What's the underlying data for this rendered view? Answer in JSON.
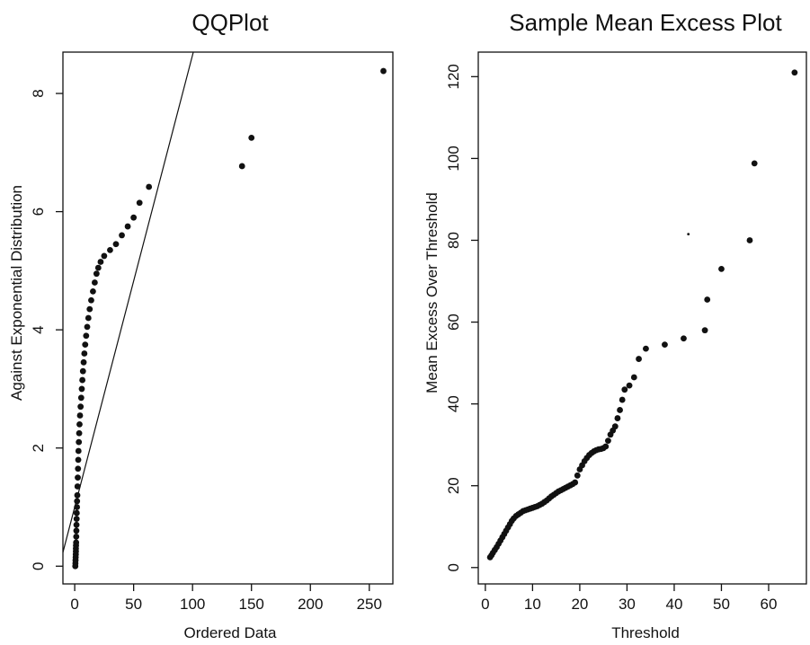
{
  "chart_data": [
    {
      "type": "scatter",
      "title": "QQPlot",
      "xlabel": "Ordered Data",
      "ylabel": "Against Exponential Distribution",
      "xlim": [
        -10,
        270
      ],
      "ylim": [
        -0.3,
        8.7
      ],
      "xticks": [
        0,
        50,
        100,
        150,
        200,
        250
      ],
      "yticks": [
        0,
        2,
        4,
        6,
        8
      ],
      "grid": false,
      "reference_line": {
        "intercept": 1.0,
        "slope": 0.0765
      },
      "points": [
        [
          0.5,
          0.0
        ],
        [
          0.6,
          0.05
        ],
        [
          0.7,
          0.1
        ],
        [
          0.8,
          0.15
        ],
        [
          0.9,
          0.2
        ],
        [
          1.0,
          0.25
        ],
        [
          1.0,
          0.3
        ],
        [
          1.1,
          0.35
        ],
        [
          1.2,
          0.4
        ],
        [
          1.3,
          0.5
        ],
        [
          1.4,
          0.6
        ],
        [
          1.5,
          0.7
        ],
        [
          1.6,
          0.8
        ],
        [
          1.7,
          0.9
        ],
        [
          1.9,
          1.0
        ],
        [
          2.0,
          1.1
        ],
        [
          2.2,
          1.2
        ],
        [
          2.4,
          1.35
        ],
        [
          2.6,
          1.5
        ],
        [
          2.8,
          1.65
        ],
        [
          3.0,
          1.8
        ],
        [
          3.2,
          1.95
        ],
        [
          3.5,
          2.1
        ],
        [
          3.8,
          2.25
        ],
        [
          4.1,
          2.4
        ],
        [
          4.5,
          2.55
        ],
        [
          5.0,
          2.7
        ],
        [
          5.5,
          2.85
        ],
        [
          6.0,
          3.0
        ],
        [
          6.5,
          3.15
        ],
        [
          7.0,
          3.3
        ],
        [
          7.6,
          3.45
        ],
        [
          8.2,
          3.6
        ],
        [
          8.9,
          3.75
        ],
        [
          9.7,
          3.9
        ],
        [
          10.6,
          4.05
        ],
        [
          11.6,
          4.2
        ],
        [
          12.7,
          4.35
        ],
        [
          14.0,
          4.5
        ],
        [
          15.5,
          4.65
        ],
        [
          17.0,
          4.8
        ],
        [
          18.5,
          4.95
        ],
        [
          20.0,
          5.05
        ],
        [
          22.0,
          5.15
        ],
        [
          25.0,
          5.25
        ],
        [
          30.0,
          5.35
        ],
        [
          35.0,
          5.45
        ],
        [
          40.0,
          5.6
        ],
        [
          45.0,
          5.75
        ],
        [
          50.0,
          5.9
        ],
        [
          55.0,
          6.15
        ],
        [
          63.0,
          6.42
        ],
        [
          142.0,
          6.77
        ],
        [
          150.0,
          7.25
        ],
        [
          262.0,
          8.38
        ]
      ]
    },
    {
      "type": "scatter",
      "title": "Sample Mean Excess Plot",
      "xlabel": "Threshold",
      "ylabel": "Mean Excess Over Threshold",
      "xlim": [
        -1.5,
        68
      ],
      "ylim": [
        -4,
        126
      ],
      "xticks": [
        0,
        10,
        20,
        30,
        40,
        50,
        60
      ],
      "yticks": [
        0,
        20,
        40,
        60,
        80,
        100,
        120
      ],
      "grid": false,
      "points": [
        [
          1.0,
          2.5
        ],
        [
          1.3,
          3.0
        ],
        [
          1.6,
          3.6
        ],
        [
          2.0,
          4.3
        ],
        [
          2.4,
          5.0
        ],
        [
          2.8,
          5.8
        ],
        [
          3.2,
          6.6
        ],
        [
          3.6,
          7.4
        ],
        [
          4.0,
          8.2
        ],
        [
          4.4,
          9.0
        ],
        [
          4.8,
          9.8
        ],
        [
          5.2,
          10.6
        ],
        [
          5.6,
          11.4
        ],
        [
          6.0,
          12.0
        ],
        [
          6.5,
          12.6
        ],
        [
          7.0,
          13.0
        ],
        [
          7.5,
          13.4
        ],
        [
          8.0,
          13.8
        ],
        [
          8.5,
          14.0
        ],
        [
          9.0,
          14.2
        ],
        [
          9.5,
          14.4
        ],
        [
          10.0,
          14.6
        ],
        [
          10.5,
          14.8
        ],
        [
          11.0,
          15.0
        ],
        [
          11.5,
          15.3
        ],
        [
          12.0,
          15.6
        ],
        [
          12.5,
          16.0
        ],
        [
          13.0,
          16.4
        ],
        [
          13.5,
          16.9
        ],
        [
          14.0,
          17.4
        ],
        [
          14.5,
          17.8
        ],
        [
          15.0,
          18.2
        ],
        [
          15.5,
          18.6
        ],
        [
          16.0,
          18.9
        ],
        [
          16.5,
          19.2
        ],
        [
          17.0,
          19.5
        ],
        [
          17.5,
          19.8
        ],
        [
          18.0,
          20.1
        ],
        [
          18.5,
          20.4
        ],
        [
          19.0,
          20.8
        ],
        [
          19.5,
          22.5
        ],
        [
          20.0,
          24.0
        ],
        [
          20.5,
          25.0
        ],
        [
          21.0,
          26.0
        ],
        [
          21.5,
          26.8
        ],
        [
          22.0,
          27.5
        ],
        [
          22.5,
          28.0
        ],
        [
          23.0,
          28.4
        ],
        [
          23.5,
          28.7
        ],
        [
          24.0,
          28.9
        ],
        [
          24.5,
          29.0
        ],
        [
          25.0,
          29.2
        ],
        [
          25.5,
          29.6
        ],
        [
          26.0,
          31.0
        ],
        [
          26.5,
          32.5
        ],
        [
          27.0,
          33.5
        ],
        [
          27.5,
          34.5
        ],
        [
          28.0,
          36.5
        ],
        [
          28.5,
          38.5
        ],
        [
          29.0,
          41.0
        ],
        [
          29.5,
          43.5
        ],
        [
          30.5,
          44.5
        ],
        [
          31.5,
          46.5
        ],
        [
          32.5,
          51.0
        ],
        [
          34.0,
          53.5
        ],
        [
          38.0,
          54.5
        ],
        [
          42.0,
          56.0
        ],
        [
          46.5,
          58.0
        ],
        [
          47.0,
          65.5
        ],
        [
          50.0,
          73.0
        ],
        [
          56.0,
          80.0
        ],
        [
          57.0,
          98.8
        ],
        [
          65.5,
          121.0
        ]
      ],
      "small_points": [
        [
          43.0,
          81.5
        ]
      ]
    }
  ]
}
